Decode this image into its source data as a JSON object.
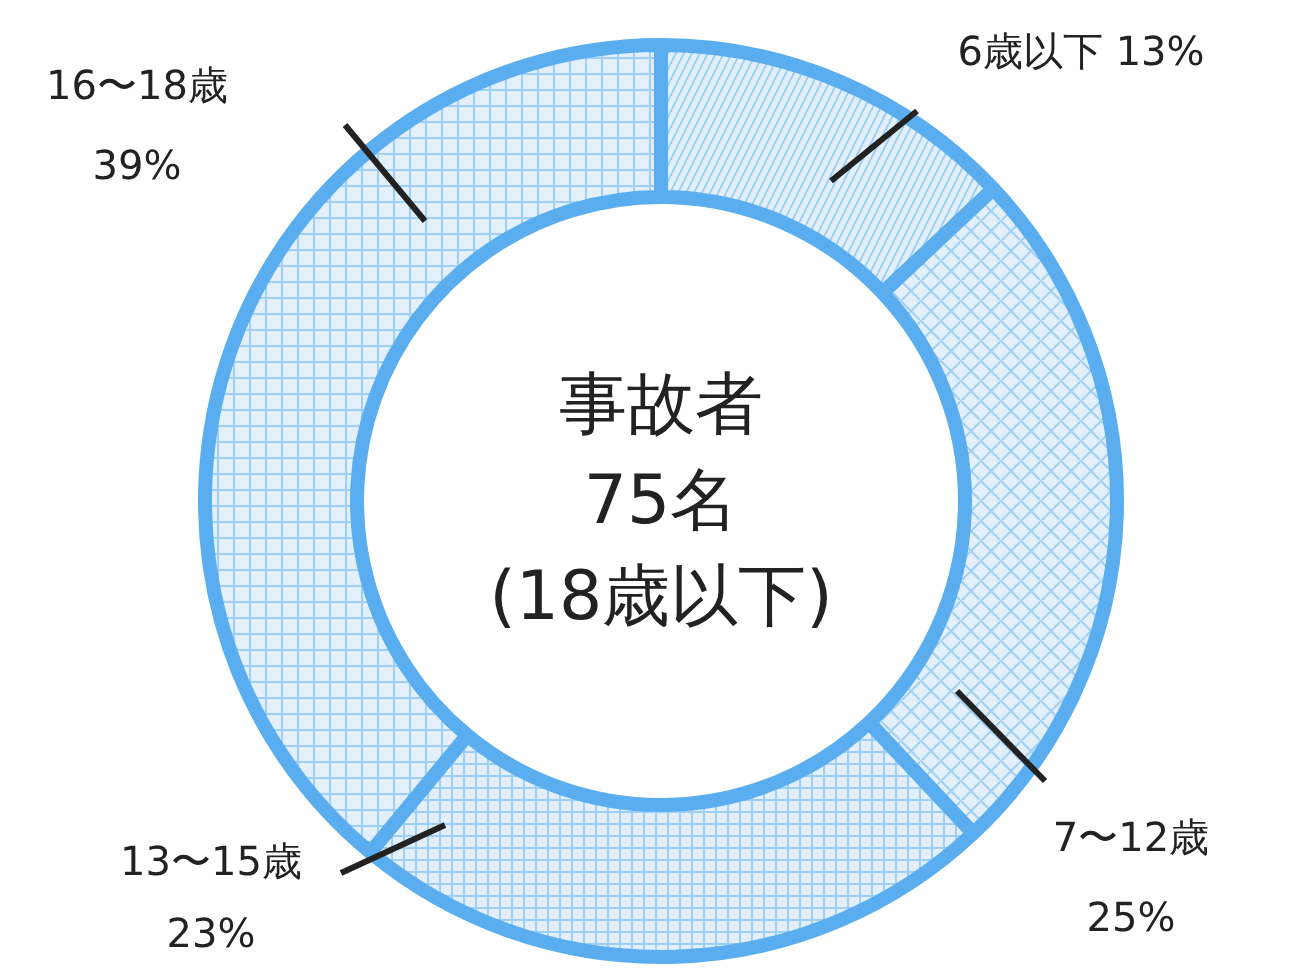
{
  "chart_data": {
    "type": "donut",
    "categories": [
      "6歳以下",
      "7〜12歳",
      "13〜15歳",
      "16〜18歳"
    ],
    "values": [
      13,
      25,
      23,
      39
    ],
    "value_labels": [
      "13%",
      "25%",
      "23%",
      "39%"
    ],
    "colors": [
      "#e3f0fc",
      "#e3f0fc",
      "#e3f0fc",
      "#e3f0fc"
    ],
    "annotations": [
      "事故者",
      "75名",
      "(18歳以下)"
    ]
  }
}
